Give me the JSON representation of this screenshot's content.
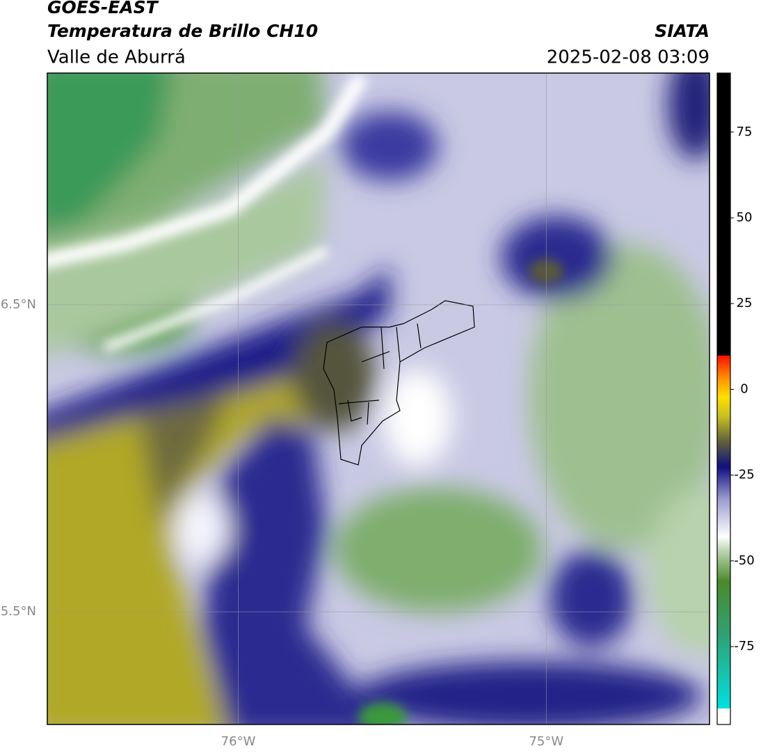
{
  "header": {
    "title": "GOES-EAST",
    "subtitle": "Temperatura de Brillo CH10",
    "region": "Valle de Aburrá",
    "source": "SIATA",
    "datetime": "2025-02-08 03:09"
  },
  "map": {
    "xlim": [
      -76.62,
      -74.47
    ],
    "ylim": [
      5.133,
      7.255
    ],
    "xticks": [
      {
        "value": -76,
        "label": "76°W"
      },
      {
        "value": -75,
        "label": "75°W"
      }
    ],
    "yticks": [
      {
        "value": 6.5,
        "label": "6.5°N"
      },
      {
        "value": 5.5,
        "label": "5.5°N"
      }
    ]
  },
  "colorbar": {
    "lim": [
      -97.7,
      92.2
    ],
    "ticks": [
      75,
      50,
      25,
      0,
      -25,
      -50,
      -75
    ]
  }
}
